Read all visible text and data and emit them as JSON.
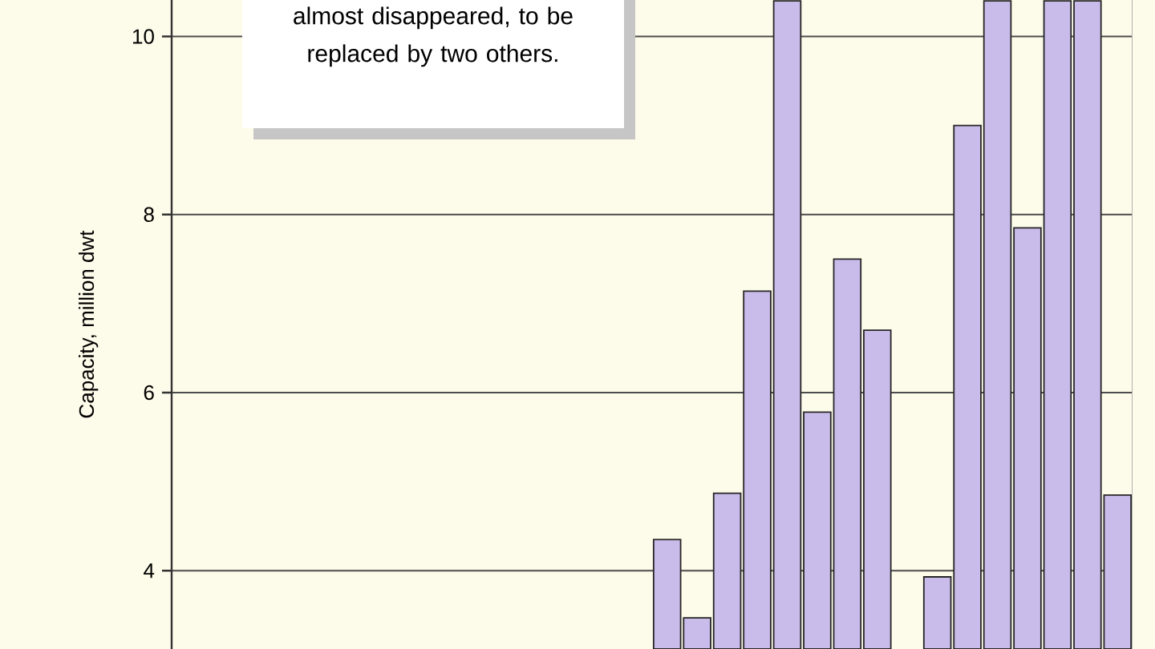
{
  "chart_data": {
    "type": "bar",
    "ylabel": "Capacity, million dwt",
    "categories": [
      null,
      null,
      null,
      null,
      null,
      null,
      null,
      null,
      null,
      null,
      null,
      null,
      null,
      null,
      null,
      null,
      null,
      null,
      null,
      null,
      null,
      null,
      null,
      null,
      null,
      null,
      null,
      null,
      null,
      null,
      null,
      null
    ],
    "values": [
      null,
      null,
      null,
      null,
      null,
      null,
      null,
      null,
      null,
      null,
      null,
      null,
      null,
      null,
      null,
      null,
      4.35,
      3.47,
      4.87,
      7.14,
      10.4,
      5.78,
      7.5,
      6.7,
      null,
      3.93,
      9.0,
      10.4,
      7.85,
      10.4,
      10.4,
      4.85
    ],
    "color": "#c9bbea",
    "ylim": [
      3.12,
      10.41
    ],
    "yticks": [
      4,
      6,
      8,
      10
    ],
    "grid": "y",
    "annotations": [
      "almost disappeared, to be replaced by two others."
    ]
  }
}
